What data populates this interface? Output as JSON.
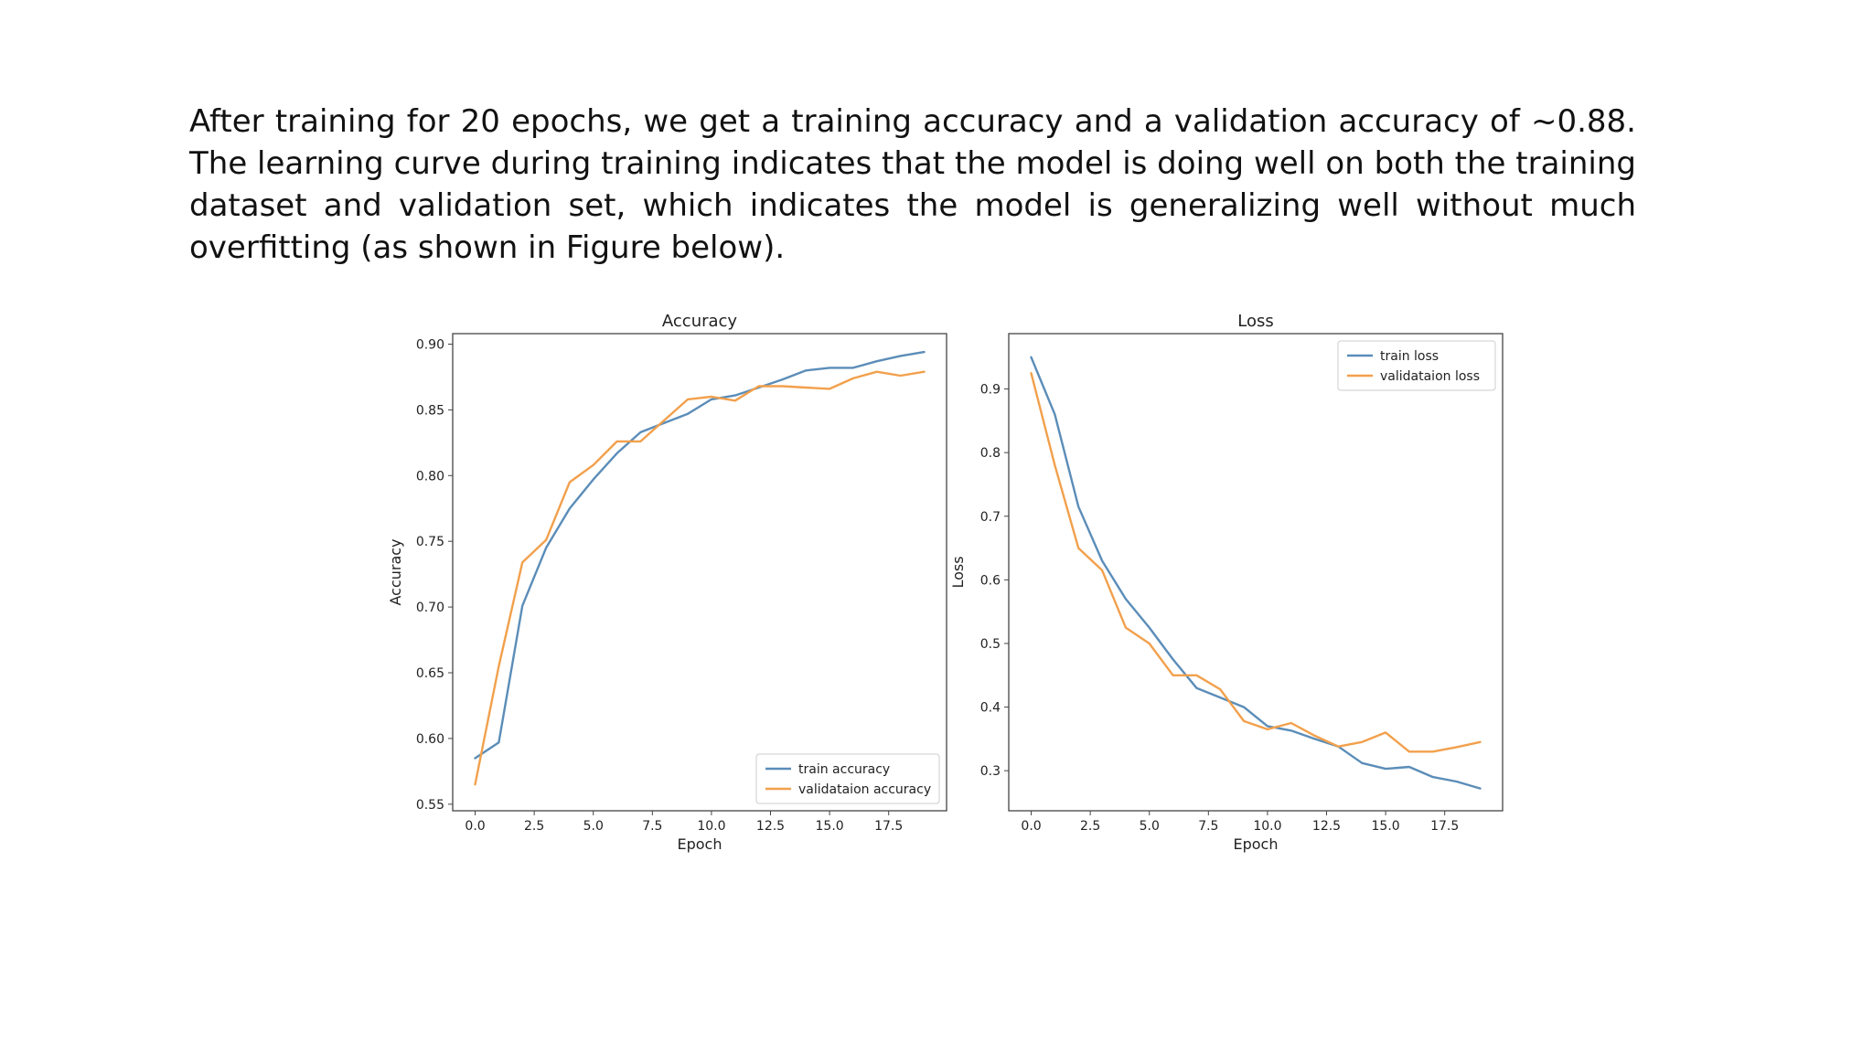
{
  "slide": {
    "paragraph": "After training for 20 epochs, we get a training accuracy and a validation accuracy of ~0.88. The learning curve during training indicates that the model is doing well on both the training dataset and validation set, which indicates the model is generalizing well without much overfitting (as shown in Figure below)."
  },
  "chart_data": [
    {
      "type": "line",
      "title": "Accuracy",
      "xlabel": "Epoch",
      "ylabel": "Accuracy",
      "xlim": [
        -0.95,
        19.95
      ],
      "ylim": [
        0.545,
        0.908
      ],
      "xticks": [
        "0.0",
        "2.5",
        "5.0",
        "7.5",
        "10.0",
        "12.5",
        "15.0",
        "17.5"
      ],
      "yticks": [
        "0.55",
        "0.60",
        "0.65",
        "0.70",
        "0.75",
        "0.80",
        "0.85",
        "0.90"
      ],
      "grid": false,
      "legend_position": "lower-right",
      "x": [
        0,
        1,
        2,
        3,
        4,
        5,
        6,
        7,
        8,
        9,
        10,
        11,
        12,
        13,
        14,
        15,
        16,
        17,
        18,
        19
      ],
      "series": [
        {
          "name": "train accuracy",
          "color": "#5b8db8",
          "values": [
            0.585,
            0.597,
            0.701,
            0.745,
            0.775,
            0.797,
            0.817,
            0.833,
            0.84,
            0.847,
            0.858,
            0.861,
            0.867,
            0.873,
            0.88,
            0.882,
            0.882,
            0.887,
            0.891,
            0.894
          ]
        },
        {
          "name": "validataion accuracy",
          "color": "#f2a04c",
          "values": [
            0.565,
            0.655,
            0.734,
            0.751,
            0.795,
            0.808,
            0.826,
            0.826,
            0.842,
            0.858,
            0.86,
            0.857,
            0.868,
            0.868,
            0.867,
            0.866,
            0.874,
            0.879,
            0.876,
            0.879
          ]
        }
      ]
    },
    {
      "type": "line",
      "title": "Loss",
      "xlabel": "Epoch",
      "ylabel": "Loss",
      "xlim": [
        -0.95,
        19.95
      ],
      "ylim": [
        0.237,
        0.987
      ],
      "xticks": [
        "0.0",
        "2.5",
        "5.0",
        "7.5",
        "10.0",
        "12.5",
        "15.0",
        "17.5"
      ],
      "yticks": [
        "0.3",
        "0.4",
        "0.5",
        "0.6",
        "0.7",
        "0.8",
        "0.9"
      ],
      "grid": false,
      "legend_position": "upper-right",
      "x": [
        0,
        1,
        2,
        3,
        4,
        5,
        6,
        7,
        8,
        9,
        10,
        11,
        12,
        13,
        14,
        15,
        16,
        17,
        18,
        19
      ],
      "series": [
        {
          "name": "train loss",
          "color": "#5b8db8",
          "values": [
            0.95,
            0.86,
            0.715,
            0.63,
            0.57,
            0.525,
            0.475,
            0.43,
            0.415,
            0.4,
            0.37,
            0.363,
            0.35,
            0.338,
            0.312,
            0.303,
            0.306,
            0.29,
            0.283,
            0.272
          ]
        },
        {
          "name": "validataion loss",
          "color": "#f2a04c",
          "values": [
            0.925,
            0.78,
            0.65,
            0.615,
            0.525,
            0.5,
            0.45,
            0.45,
            0.428,
            0.378,
            0.365,
            0.375,
            0.355,
            0.338,
            0.345,
            0.36,
            0.33,
            0.33,
            0.337,
            0.345
          ]
        }
      ]
    }
  ]
}
